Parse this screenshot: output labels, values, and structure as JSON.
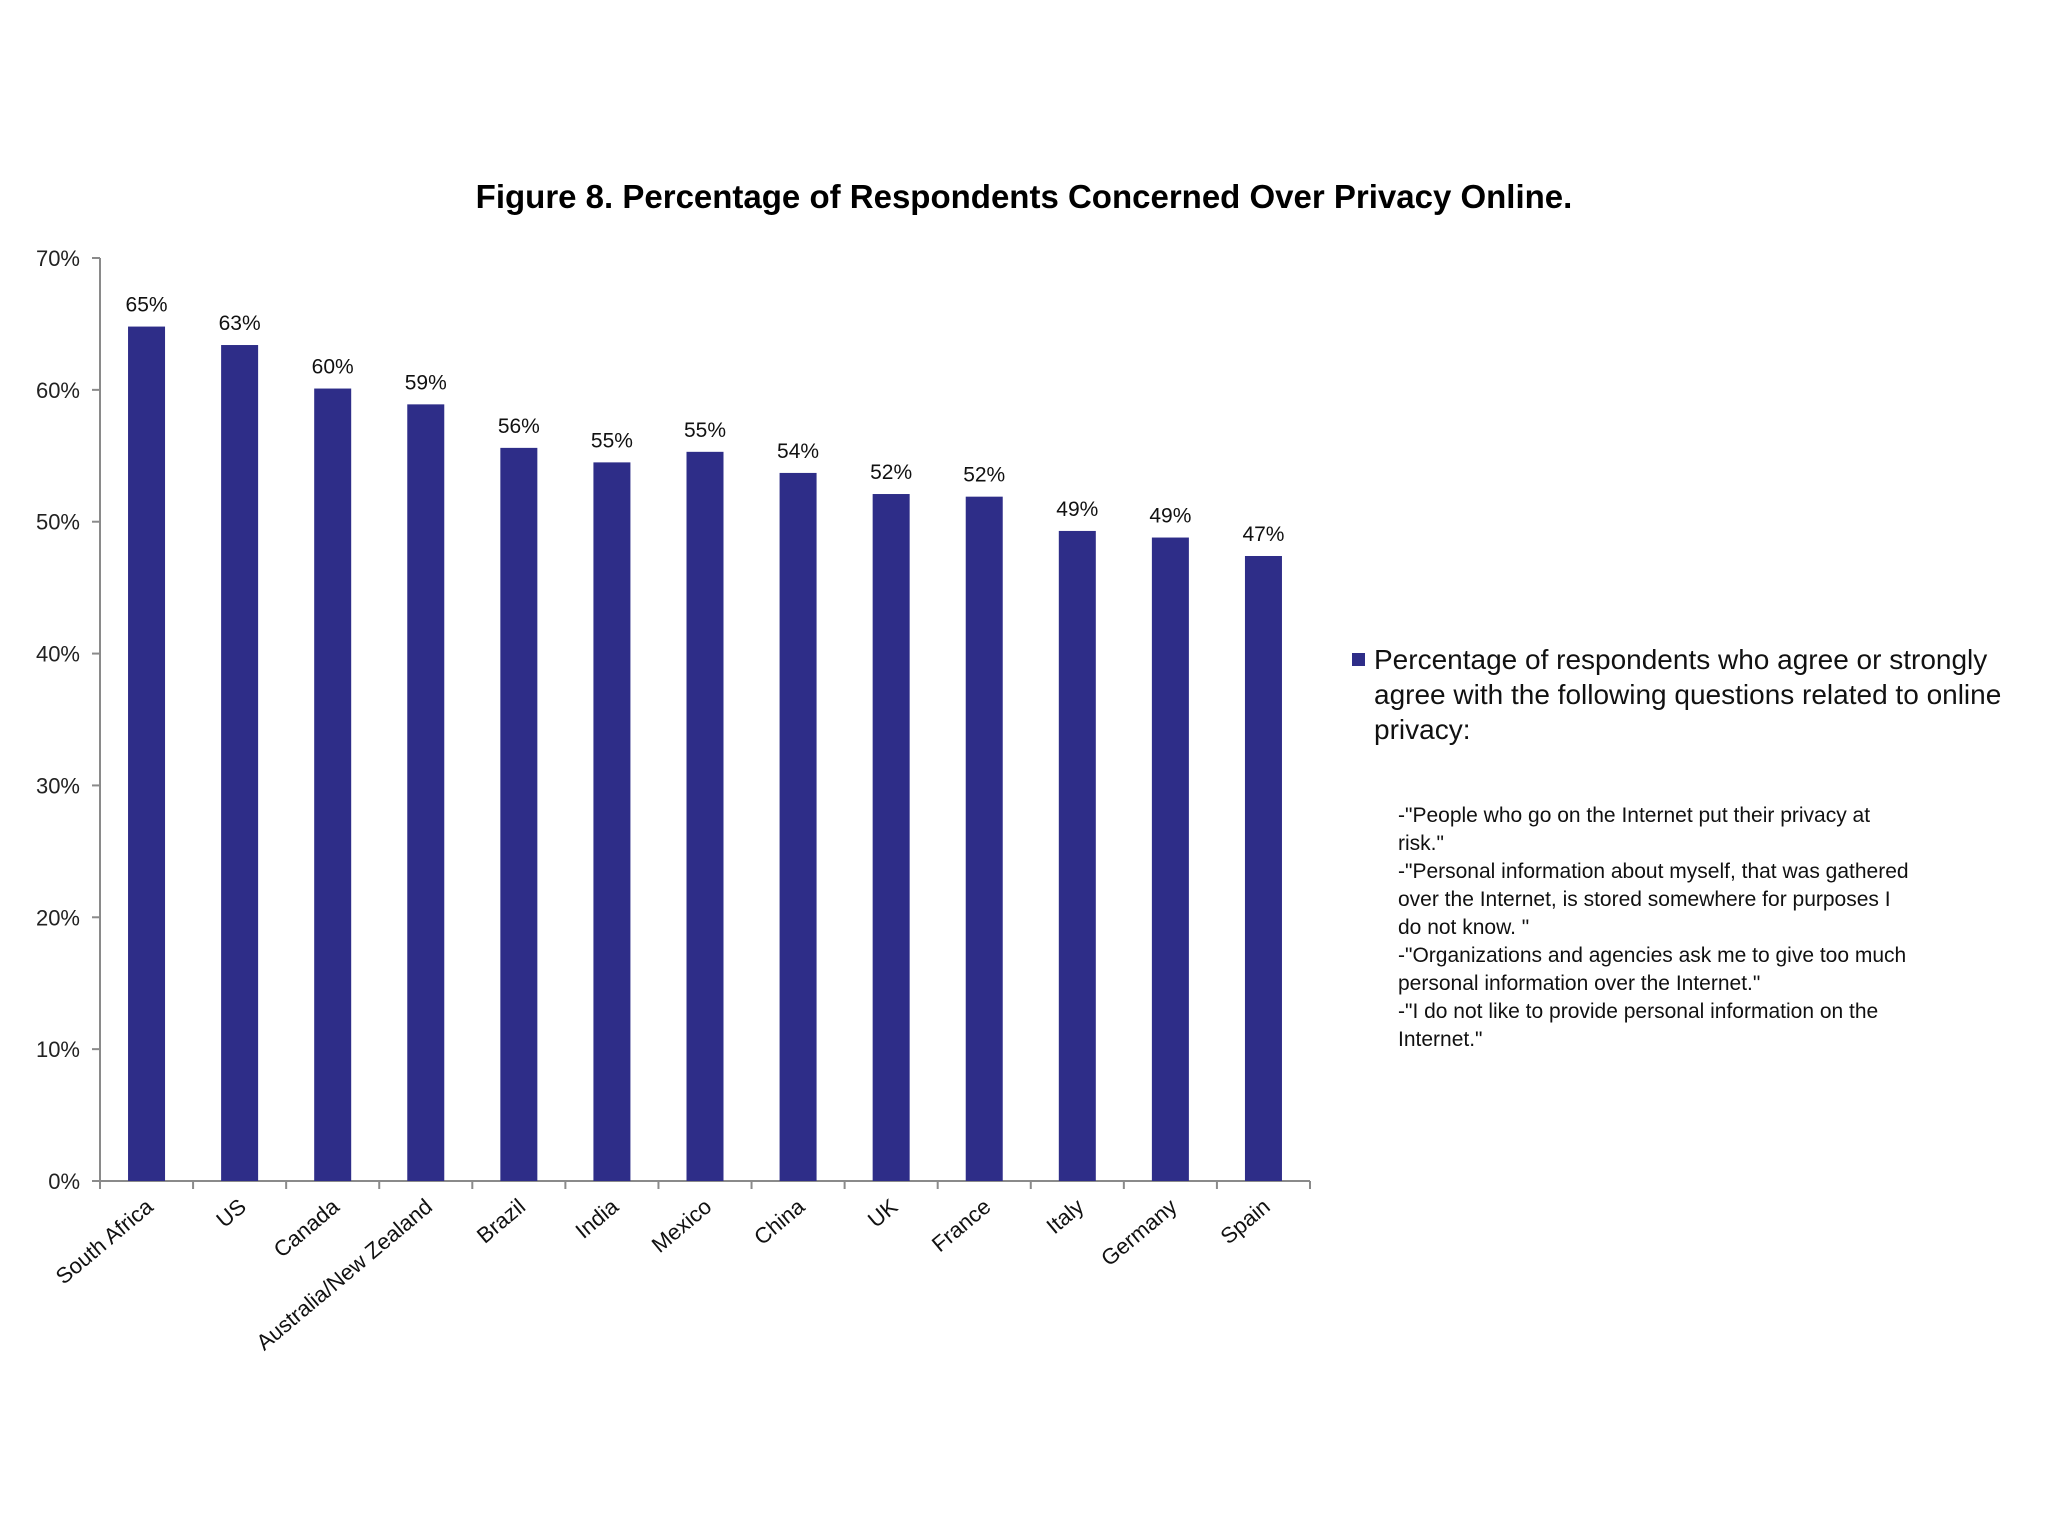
{
  "chart_data": {
    "type": "bar",
    "title": "Figure 8. Percentage of Respondents Concerned Over Privacy Online.",
    "categories": [
      "South Africa",
      "US",
      "Canada",
      "Australia/New Zealand",
      "Brazil",
      "India",
      "Mexico",
      "China",
      "UK",
      "France",
      "Italy",
      "Germany",
      "Spain"
    ],
    "series": [
      {
        "name": "Percentage of respondents who agree or strongly agree with the following questions related to online privacy:",
        "values": [
          64.8,
          63.4,
          60.1,
          58.9,
          55.6,
          54.5,
          55.3,
          53.7,
          52.1,
          51.9,
          49.3,
          48.8,
          47.4
        ],
        "labels": [
          "65%",
          "63%",
          "60%",
          "59%",
          "56%",
          "55%",
          "55%",
          "54%",
          "52%",
          "52%",
          "49%",
          "49%",
          "47%"
        ],
        "color": "#2e2d88"
      }
    ],
    "ylim": [
      0,
      70
    ],
    "yticks": [
      0,
      10,
      20,
      30,
      40,
      50,
      60,
      70
    ],
    "ytick_labels": [
      "0%",
      "10%",
      "20%",
      "30%",
      "40%",
      "50%",
      "60%",
      "70%"
    ],
    "xlabel": "",
    "ylabel": "",
    "grid": false,
    "legend_position": "right",
    "legend_notes": [
      "-\"People who go on the Internet put their privacy at",
      "risk.\"",
      "-\"Personal information about myself, that was gathered",
      "over the Internet, is stored somewhere for purposes I",
      "do not know. \"",
      "-\"Organizations and agencies ask me to give too much",
      "personal information over the Internet.\"",
      "-\"I do not like to provide personal information on the",
      "Internet.\""
    ]
  }
}
